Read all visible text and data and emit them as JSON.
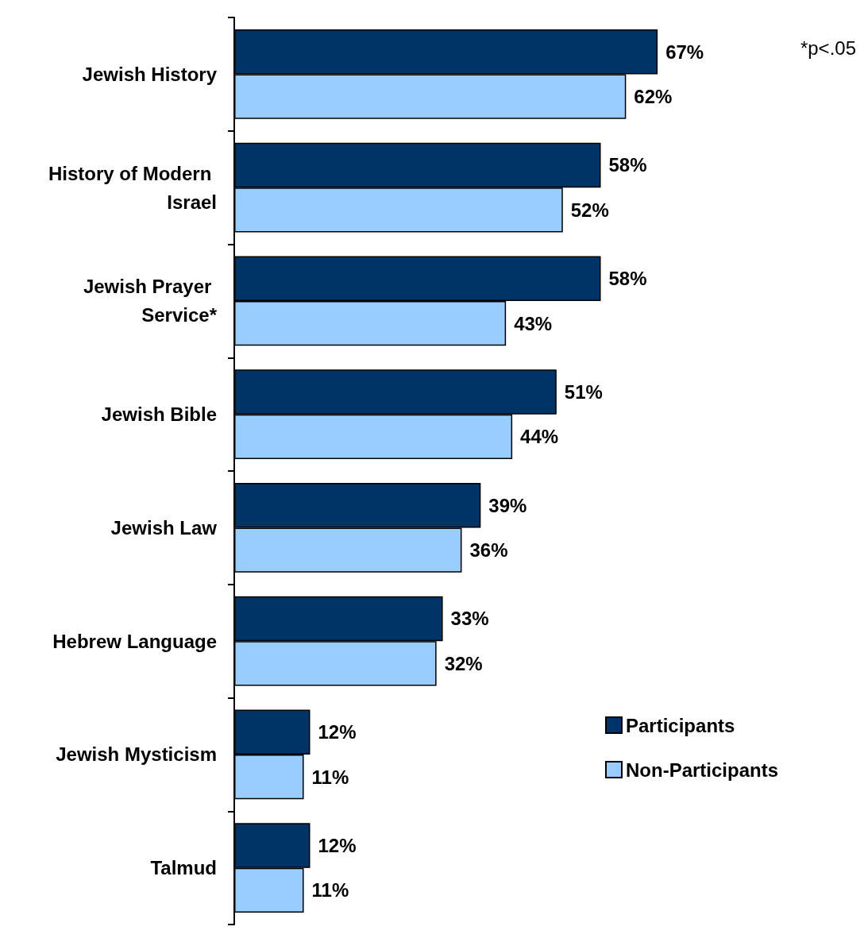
{
  "chart_data": {
    "type": "bar",
    "orientation": "horizontal",
    "categories": [
      "Jewish History",
      "History of Modern Israel",
      "Jewish Prayer Service*",
      "Jewish Bible",
      "Jewish Law",
      "Hebrew Language",
      "Jewish Mysticism",
      "Talmud"
    ],
    "series": [
      {
        "name": "Participants",
        "color": "#003366",
        "values": [
          67,
          58,
          58,
          51,
          39,
          33,
          12,
          12
        ],
        "value_labels": [
          "67%",
          "58%",
          "58%",
          "51%",
          "39%",
          "33%",
          "12%",
          "12%"
        ]
      },
      {
        "name": "Non-Participants",
        "color": "#99ccff",
        "values": [
          62,
          52,
          43,
          44,
          36,
          32,
          11,
          11
        ],
        "value_labels": [
          "62%",
          "52%",
          "43%",
          "44%",
          "36%",
          "32%",
          "11%",
          "11%"
        ]
      }
    ],
    "legend": "right",
    "annotations": [
      "*p<.05"
    ]
  }
}
